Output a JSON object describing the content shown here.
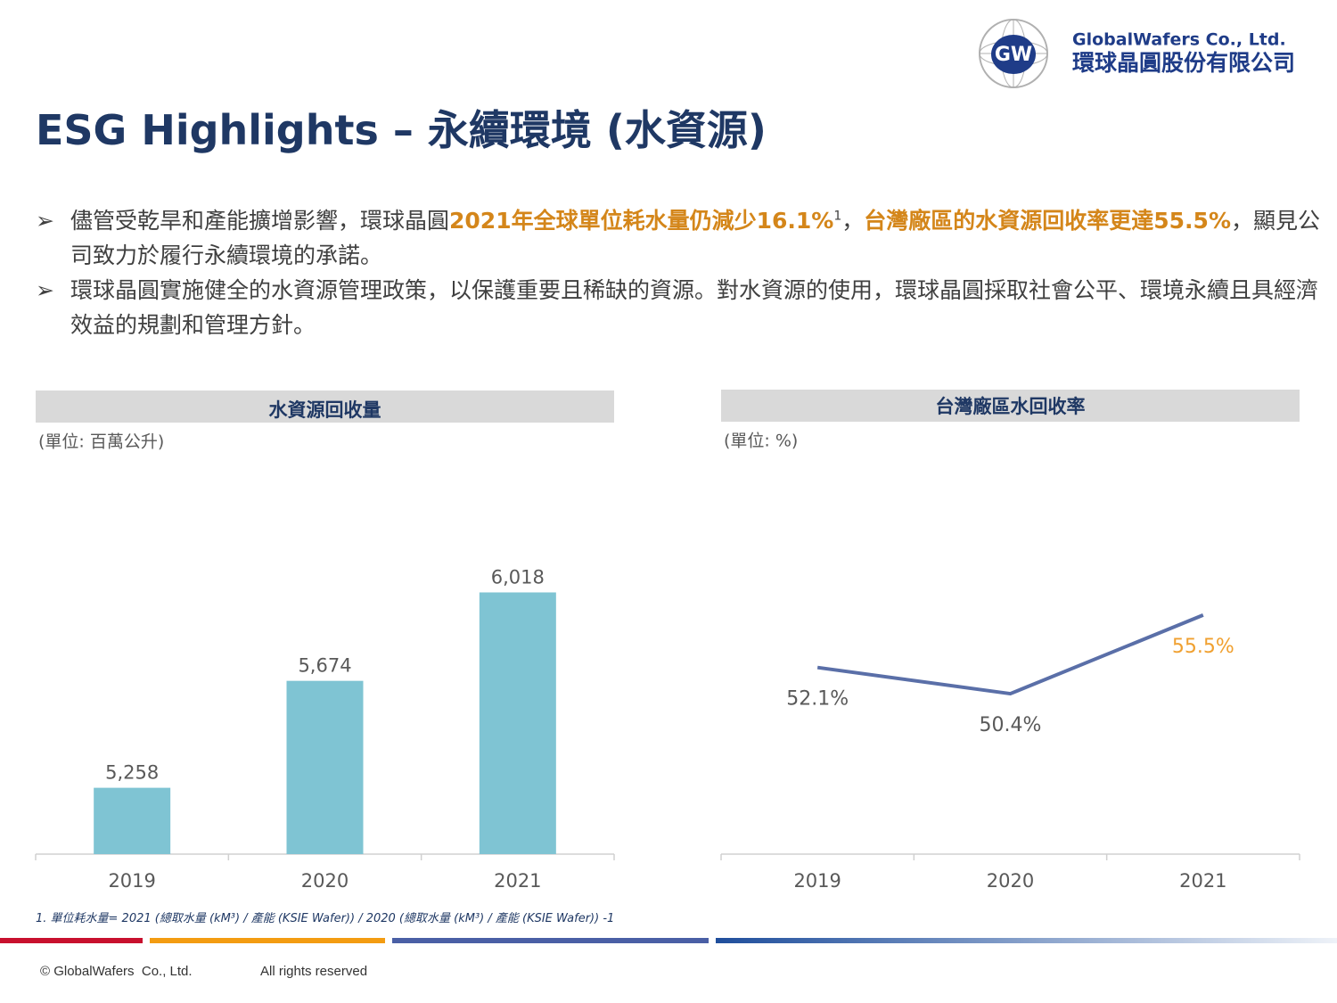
{
  "header": {
    "company_en": "GlobalWafers Co., Ltd.",
    "company_zh": "環球晶圓股份有限公司",
    "logo_text": "GW"
  },
  "title": "ESG Highlights – 永續環境 (水資源)",
  "bullets": [
    {
      "runs": [
        {
          "text": "儘管受乾旱和產能擴增影響，環球晶圓",
          "style": "normal"
        },
        {
          "text": "2021年全球單位耗水量仍減少16.1%",
          "style": "highlight"
        },
        {
          "text": "1",
          "style": "superscript"
        },
        {
          "text": "，",
          "style": "normal"
        },
        {
          "text": "台灣廠區的水資源回收率更達55.5%",
          "style": "highlight"
        },
        {
          "text": "，顯見公司致力於履行永續環境的承諾。",
          "style": "normal"
        }
      ]
    },
    {
      "runs": [
        {
          "text": "環球晶圓實施健全的水資源管理政策，以保護重要且稀缺的資源。對水資源的使用，環球晶圓採取社會公平、環境永續且具經濟效益的規劃和管理方針。",
          "style": "normal"
        }
      ]
    }
  ],
  "chart_data": [
    {
      "type": "bar",
      "title": "水資源回收量",
      "subtitle": "(單位: 百萬公升)",
      "categories": [
        "2019",
        "2020",
        "2021"
      ],
      "values": [
        5258,
        5674,
        6018
      ],
      "value_labels": [
        "5,258",
        "5,674",
        "6,018"
      ],
      "color": "#7fc4d3",
      "ylim": [
        5000,
        6200
      ]
    },
    {
      "type": "line",
      "title": "台灣廠區水回收率",
      "subtitle": "(單位: %)",
      "categories": [
        "2019",
        "2020",
        "2021"
      ],
      "values": [
        52.1,
        50.4,
        55.5
      ],
      "value_labels": [
        "52.1%",
        "50.4%",
        "55.5%"
      ],
      "value_label_colors": [
        "#595959",
        "#595959",
        "#f0a030"
      ],
      "color": "#5a6fa8",
      "ylim": [
        40,
        60
      ]
    }
  ],
  "footnote": "1. 單位耗水量= 2021 (總取水量 (kM³) / 產能 (KSIE Wafer))  / 2020 (總取水量 (kM³) / 產能 (KSIE Wafer)) -1",
  "footer": {
    "copyright": "© GlobalWafers  Co., Ltd.",
    "rights": "All rights reserved"
  }
}
